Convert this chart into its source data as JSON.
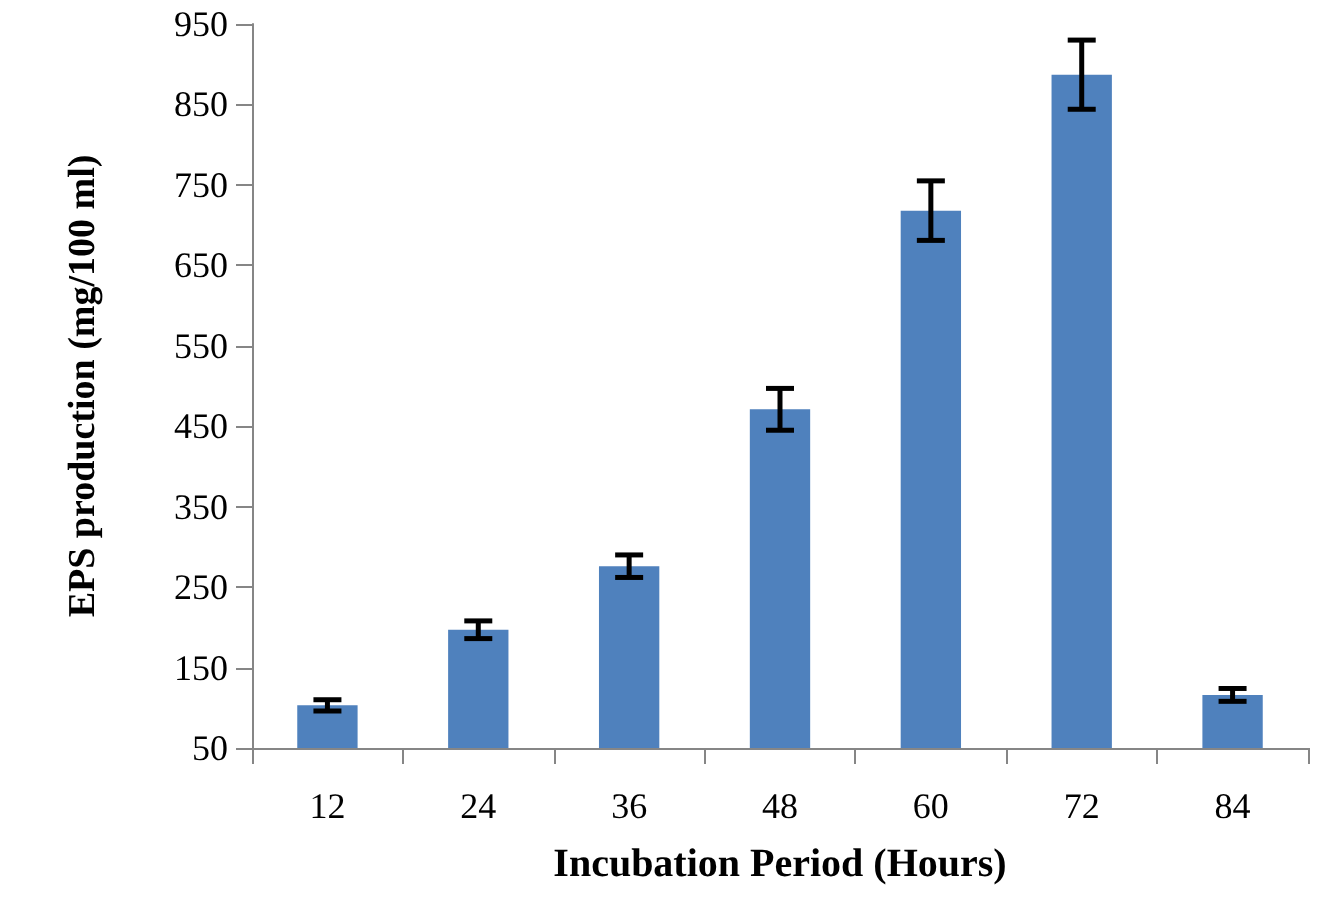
{
  "chart_data": {
    "type": "bar",
    "xlabel": "Incubation Period (Hours)",
    "ylabel": "EPS production (mg/100 ml)",
    "categories": [
      "12",
      "24",
      "36",
      "48",
      "60",
      "72",
      "84"
    ],
    "values": [
      103,
      197,
      276,
      471,
      718,
      887,
      116
    ],
    "errors": [
      7,
      11,
      14,
      26,
      37,
      43,
      8
    ],
    "color": "#4f81bd",
    "ylim": [
      50,
      950
    ],
    "yticks": [
      50,
      150,
      250,
      350,
      450,
      550,
      650,
      750,
      850,
      950
    ],
    "grid": false
  }
}
